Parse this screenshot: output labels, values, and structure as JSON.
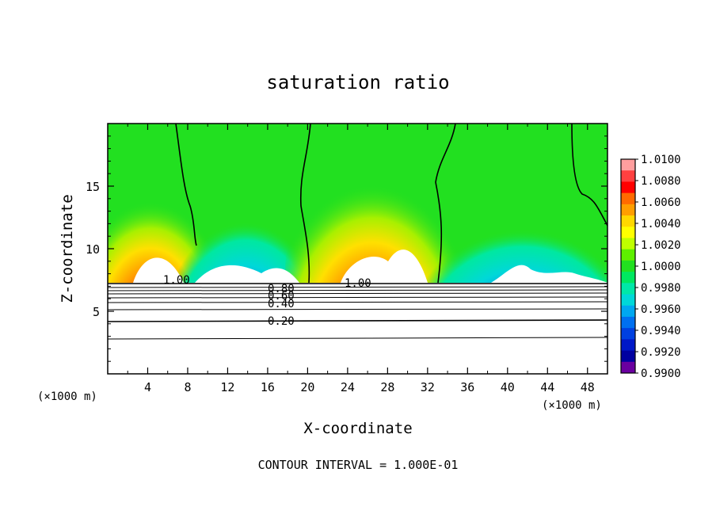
{
  "chart_data": {
    "type": "heatmap",
    "title": "saturation ratio",
    "xlabel": "X-coordinate",
    "ylabel": "Z-coordinate",
    "x_unit": "(×1000 m)",
    "footer": "CONTOUR INTERVAL = 1.000E-01",
    "xlim": [
      0,
      50
    ],
    "ylim": [
      0,
      20
    ],
    "x_ticks": [
      4,
      8,
      12,
      16,
      20,
      24,
      28,
      32,
      36,
      40,
      44,
      48
    ],
    "y_ticks": [
      5,
      10,
      15
    ],
    "colorbar": {
      "min": 0.99,
      "max": 1.01,
      "tick_labels": [
        "1.0100",
        "1.0080",
        "1.0060",
        "1.0040",
        "1.0020",
        "1.0000",
        "0.9980",
        "0.9960",
        "0.9940",
        "0.9920",
        "0.9900"
      ],
      "colors": [
        "#ff9e9e",
        "#ff4040",
        "#ff0000",
        "#ff6a00",
        "#ff9e00",
        "#ffd800",
        "#ffff00",
        "#bfff00",
        "#5ef000",
        "#22e020",
        "#00e860",
        "#00e8a8",
        "#00d8d8",
        "#00a8f0",
        "#0070f0",
        "#0040e0",
        "#0018c8",
        "#0000a0",
        "#6a00a0"
      ]
    },
    "contour_labels": [
      "1.00",
      "1.00",
      "0.80",
      "0.60",
      "0.40",
      "0.20"
    ],
    "grid": false
  }
}
